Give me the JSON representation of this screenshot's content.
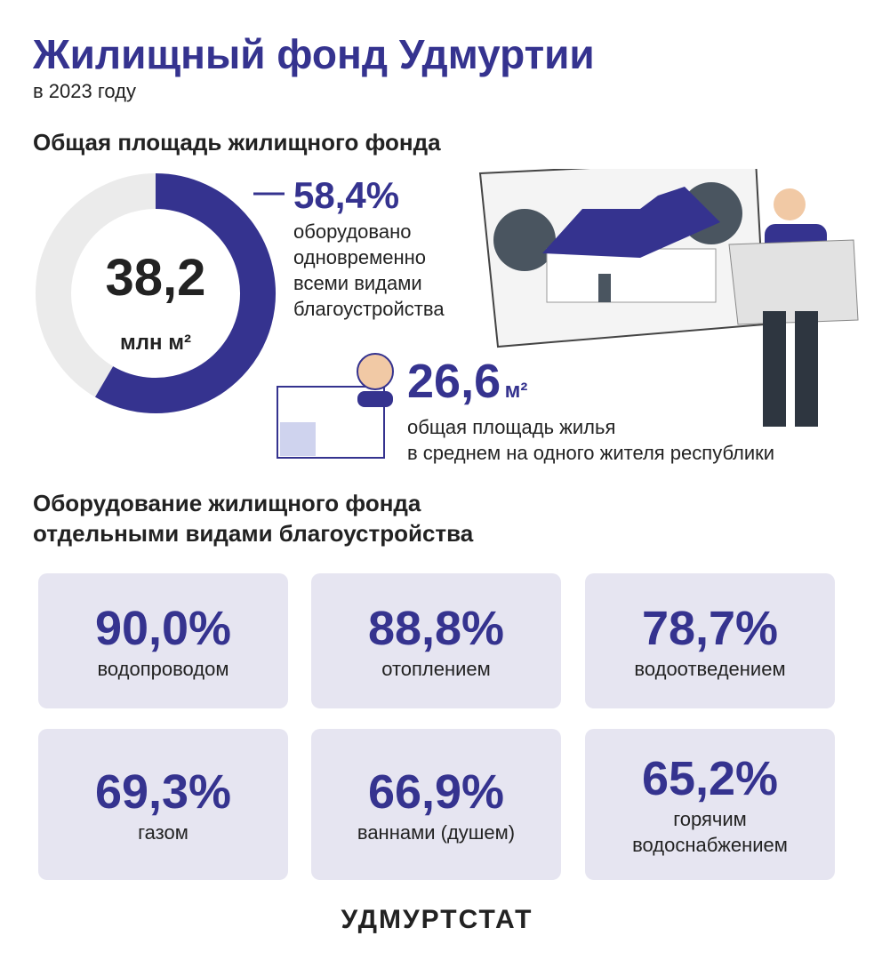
{
  "header": {
    "title": "Жилищный фонд Удмуртии",
    "subtitle": "в 2023 году"
  },
  "area": {
    "heading": "Общая площадь жилищного фонда",
    "total": {
      "value": "38,2",
      "unit": "млн м²"
    },
    "share": {
      "value": 58.4,
      "label": "58,4%",
      "text": [
        "оборудовано",
        "одновременно",
        "всеми видами",
        "благоустройства"
      ]
    },
    "per_capita": {
      "value": "26,6",
      "unit": "м²",
      "text": [
        "общая площадь жилья",
        "в среднем на одного жителя республики"
      ]
    }
  },
  "equipment": {
    "heading": [
      "Оборудование жилищного фонда",
      "отдельными видами благоустройства"
    ],
    "cards": [
      {
        "value": "90,0%",
        "label": [
          "водопроводом"
        ]
      },
      {
        "value": "88,8%",
        "label": [
          "отоплением"
        ]
      },
      {
        "value": "78,7%",
        "label": [
          "водоотведением"
        ]
      },
      {
        "value": "69,3%",
        "label": [
          "газом"
        ]
      },
      {
        "value": "66,9%",
        "label": [
          "ваннами (душем)"
        ]
      },
      {
        "value": "65,2%",
        "label": [
          "горячим",
          "водоснабжением"
        ]
      }
    ]
  },
  "footer": "УДМУРТСТАТ"
}
